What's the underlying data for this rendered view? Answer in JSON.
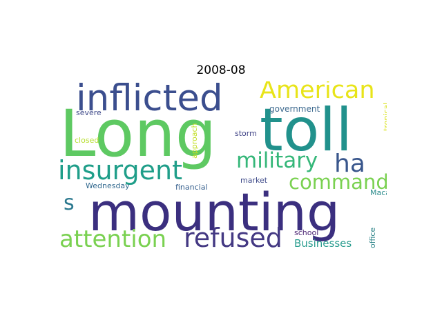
{
  "title": "2008-08",
  "words": [
    {
      "text": "Long",
      "color": "#5ec962"
    },
    {
      "text": "toll",
      "color": "#21918c"
    },
    {
      "text": "mounting",
      "color": "#3b2f7f"
    },
    {
      "text": "inflicted",
      "color": "#3b4e8e"
    },
    {
      "text": "American",
      "color": "#e8e419"
    },
    {
      "text": "insurgent",
      "color": "#1f9e89"
    },
    {
      "text": "military",
      "color": "#35b779"
    },
    {
      "text": "ha",
      "color": "#39568c"
    },
    {
      "text": "commander",
      "color": "#7ad151"
    },
    {
      "text": "s",
      "color": "#2a788e"
    },
    {
      "text": "attention",
      "color": "#7ad151"
    },
    {
      "text": "refused",
      "color": "#443983"
    },
    {
      "text": "Businesses",
      "color": "#2a9d8f"
    },
    {
      "text": "government",
      "color": "#3e6a8f"
    },
    {
      "text": "severe",
      "color": "#3e4989"
    },
    {
      "text": "closed",
      "color": "#b5de2b"
    },
    {
      "text": "approach",
      "color": "#c2df23"
    },
    {
      "text": "storm",
      "color": "#414487"
    },
    {
      "text": "tropical",
      "color": "#d8e219"
    },
    {
      "text": "Wednesday",
      "color": "#31688e"
    },
    {
      "text": "financial",
      "color": "#355f8d"
    },
    {
      "text": "market",
      "color": "#3e4a89"
    },
    {
      "text": "Macau",
      "color": "#2c8c8c"
    },
    {
      "text": "school",
      "color": "#481f70"
    },
    {
      "text": "office",
      "color": "#31868b"
    }
  ]
}
